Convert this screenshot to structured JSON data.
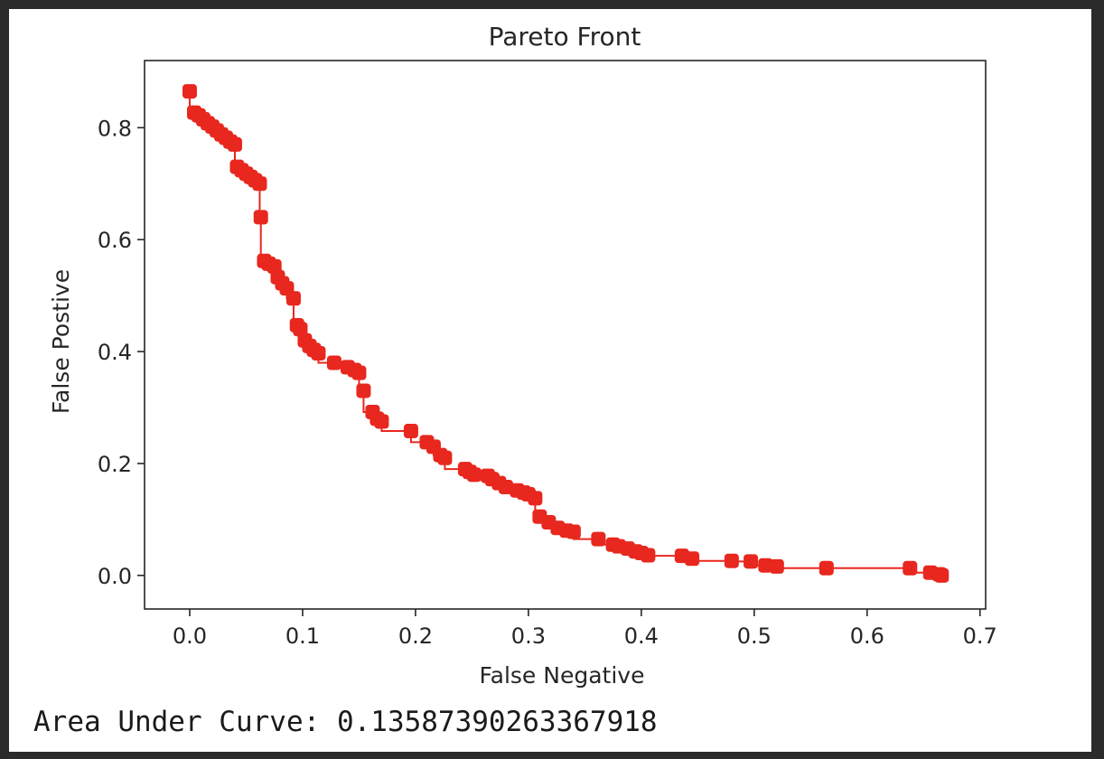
{
  "colors": {
    "series": "#e8271e",
    "axis": "#262626",
    "window_border": "#2b2b2b",
    "background": "#ffffff"
  },
  "chart_data": {
    "type": "line",
    "title": "Pareto Front",
    "xlabel": "False Negative",
    "ylabel": "False Postive",
    "xlim": [
      -0.04,
      0.705
    ],
    "ylim": [
      -0.06,
      0.92
    ],
    "xticks": [
      0.0,
      0.1,
      0.2,
      0.3,
      0.4,
      0.5,
      0.6,
      0.7
    ],
    "xtick_labels": [
      "0.0",
      "0.1",
      "0.2",
      "0.3",
      "0.4",
      "0.5",
      "0.6",
      "0.7"
    ],
    "yticks": [
      0.0,
      0.2,
      0.4,
      0.6,
      0.8
    ],
    "ytick_labels": [
      "0.0",
      "0.2",
      "0.4",
      "0.6",
      "0.8"
    ],
    "grid": false,
    "legend": "none",
    "line_style": "step",
    "series": [
      {
        "color": "#e8271e",
        "marker": "square",
        "x": [
          0.0,
          0.004,
          0.008,
          0.012,
          0.016,
          0.02,
          0.024,
          0.028,
          0.032,
          0.036,
          0.04,
          0.042,
          0.046,
          0.05,
          0.054,
          0.058,
          0.062,
          0.063,
          0.066,
          0.07,
          0.075,
          0.078,
          0.082,
          0.086,
          0.092,
          0.095,
          0.098,
          0.102,
          0.106,
          0.11,
          0.114,
          0.128,
          0.14,
          0.146,
          0.15,
          0.154,
          0.162,
          0.166,
          0.17,
          0.196,
          0.21,
          0.216,
          0.222,
          0.226,
          0.244,
          0.248,
          0.252,
          0.264,
          0.268,
          0.274,
          0.28,
          0.29,
          0.296,
          0.3,
          0.306,
          0.31,
          0.318,
          0.326,
          0.334,
          0.34,
          0.362,
          0.375,
          0.38,
          0.388,
          0.395,
          0.4,
          0.406,
          0.436,
          0.445,
          0.48,
          0.497,
          0.51,
          0.52,
          0.564,
          0.638,
          0.656,
          0.664,
          0.666
        ],
        "y": [
          0.865,
          0.827,
          0.822,
          0.815,
          0.808,
          0.802,
          0.795,
          0.788,
          0.782,
          0.775,
          0.77,
          0.73,
          0.724,
          0.718,
          0.712,
          0.706,
          0.7,
          0.64,
          0.562,
          0.557,
          0.552,
          0.533,
          0.522,
          0.513,
          0.495,
          0.447,
          0.44,
          0.42,
          0.41,
          0.403,
          0.397,
          0.38,
          0.372,
          0.367,
          0.362,
          0.33,
          0.292,
          0.28,
          0.275,
          0.258,
          0.238,
          0.23,
          0.215,
          0.21,
          0.19,
          0.185,
          0.18,
          0.178,
          0.172,
          0.165,
          0.158,
          0.152,
          0.148,
          0.145,
          0.138,
          0.105,
          0.095,
          0.085,
          0.08,
          0.078,
          0.065,
          0.055,
          0.052,
          0.048,
          0.043,
          0.04,
          0.036,
          0.035,
          0.03,
          0.026,
          0.025,
          0.018,
          0.016,
          0.013,
          0.013,
          0.005,
          0.002,
          0.0
        ]
      }
    ]
  },
  "output": {
    "auc_label": "Area Under Curve:",
    "auc_value": "0.13587390263367918"
  }
}
